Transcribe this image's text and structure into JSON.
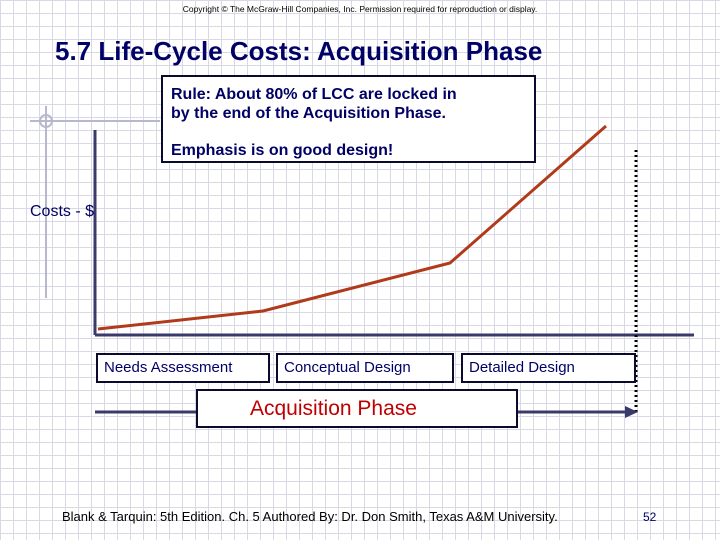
{
  "copyright": "Copyright © The McGraw-Hill Companies, Inc. Permission required for reproduction or display.",
  "title": "5.7 Life-Cycle Costs: Acquisition Phase",
  "rule_box": {
    "line1": "Rule:  About 80% of LCC are locked in",
    "line2": "by the end of the Acquisition Phase.",
    "emphasis": "Emphasis is on good design!"
  },
  "y_axis_label": "Costs - $",
  "phases": [
    "Needs Assessment",
    "Conceptual Design",
    "Detailed Design"
  ],
  "acquisition_label": "Acquisition Phase",
  "footer": "Blank & Tarquin: 5th Edition. Ch. 5 Authored By:  Dr. Don Smith, Texas A&M University.",
  "page_number": "52",
  "colors": {
    "title": "#000066",
    "curve": "#b03a1a",
    "axis": "#3a3a6a",
    "acquisition_text": "#c00000"
  }
}
